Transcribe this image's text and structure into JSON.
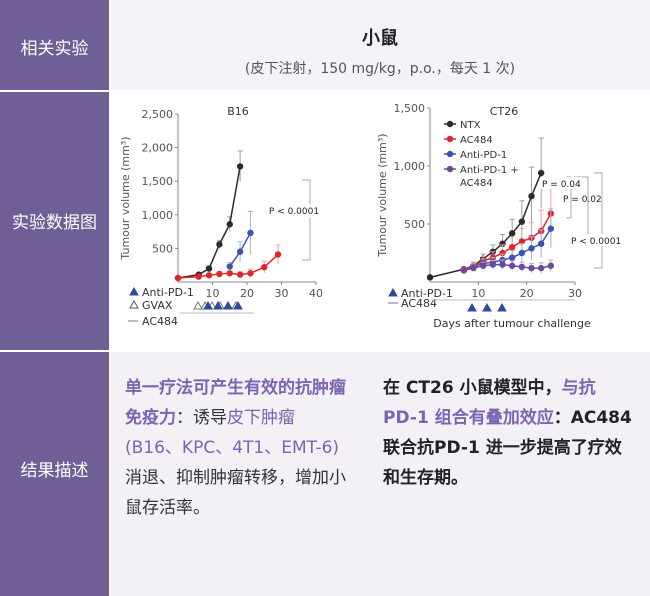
{
  "table": {
    "labels": {
      "experiment": "相关实验",
      "figure": "实验数据图",
      "result": "结果描述"
    },
    "header": {
      "title": "小鼠",
      "subtitle": "(皮下注射，150 mg/kg，p.o.，每天 1 次)"
    },
    "result_left": {
      "part1": "单一疗法可产生有效的抗肿瘤免疫力",
      "colon": "：",
      "part2": "诱导",
      "part3": "皮下肿瘤",
      "part4": " (B16、KPC、4T1、EMT-6) ",
      "part5": "消退、抑制肿瘤转移，增加小鼠存活率。"
    },
    "result_right": {
      "part1": "在 CT26 小鼠模型中，",
      "part2": "与抗 PD-1 组合有叠加效应",
      "part3": "：AC484 联合抗PD-1 进一步提高了疗效和生存期。"
    }
  },
  "colors": {
    "purple": "#6f5f96",
    "black_series": "#2b2b2b",
    "red_series": "#e0262d",
    "blue_series": "#3a55b0",
    "purple_series": "#6b4a9c",
    "triangle": "#2e4a9a"
  },
  "chart_data": [
    {
      "type": "line",
      "title": "B16",
      "ylabel": "Tumour volume (mm³)",
      "xlim": [
        0,
        40
      ],
      "ylim": [
        0,
        2500
      ],
      "xticks": [
        "10",
        "20",
        "30",
        "40"
      ],
      "yticks": [
        "500",
        "1,000",
        "1,500",
        "2,000",
        "2,500"
      ],
      "series": [
        {
          "color": "#2b2b2b",
          "x": [
            0,
            6,
            9,
            12,
            15,
            18
          ],
          "y": [
            60,
            110,
            200,
            560,
            860,
            1720
          ],
          "err": [
            0,
            20,
            40,
            60,
            110,
            230
          ]
        },
        {
          "color": "#e0262d",
          "x": [
            0,
            6,
            9,
            12,
            15,
            18,
            21,
            25,
            29
          ],
          "y": [
            60,
            80,
            100,
            120,
            130,
            110,
            130,
            220,
            410
          ],
          "err": [
            0,
            10,
            15,
            20,
            30,
            40,
            60,
            90,
            140
          ]
        },
        {
          "color": "#3a55b0",
          "x": [
            15,
            18,
            21
          ],
          "y": [
            230,
            450,
            730
          ],
          "err": [
            60,
            150,
            320
          ]
        }
      ],
      "annotations": [
        {
          "text": "P < 0.0001"
        }
      ],
      "treatment_labels": [
        "Anti-PD-1",
        "GVAX",
        "AC484"
      ]
    },
    {
      "type": "line",
      "title": "CT26",
      "ylabel": "Tumour volume (mm³)",
      "xlabel": "Days after tumour challenge",
      "xlim": [
        0,
        30
      ],
      "ylim": [
        0,
        1500
      ],
      "xticks": [
        "10",
        "20",
        "30"
      ],
      "yticks": [
        "500",
        "1,000",
        "1,500"
      ],
      "legend": {
        "position": "top-right",
        "entries": [
          "NTX",
          "AC484",
          "Anti-PD-1",
          "Anti-PD-1 + AC484"
        ]
      },
      "series": [
        {
          "name": "NTX",
          "color": "#2b2b2b",
          "x": [
            0,
            7,
            9,
            11,
            13,
            15,
            17,
            19,
            21,
            23
          ],
          "y": [
            40,
            110,
            140,
            200,
            260,
            330,
            420,
            520,
            740,
            940
          ],
          "err": [
            0,
            20,
            30,
            40,
            60,
            80,
            120,
            180,
            250,
            300
          ]
        },
        {
          "name": "AC484",
          "color": "#e0262d",
          "x": [
            7,
            9,
            11,
            13,
            15,
            17,
            19,
            21,
            23,
            25
          ],
          "y": [
            110,
            140,
            180,
            210,
            250,
            300,
            350,
            380,
            440,
            590
          ],
          "err": [
            20,
            30,
            40,
            50,
            70,
            90,
            110,
            130,
            180,
            230
          ]
        },
        {
          "name": "Anti-PD-1",
          "color": "#3a55b0",
          "x": [
            7,
            9,
            11,
            13,
            15,
            17,
            19,
            21,
            23,
            25
          ],
          "y": [
            100,
            130,
            160,
            170,
            190,
            210,
            250,
            290,
            330,
            460
          ],
          "err": [
            20,
            30,
            40,
            40,
            50,
            60,
            80,
            100,
            120,
            170
          ]
        },
        {
          "name": "Anti-PD-1 + AC484",
          "color": "#6b4a9c",
          "x": [
            7,
            9,
            11,
            13,
            15,
            17,
            19,
            21,
            23,
            25
          ],
          "y": [
            100,
            120,
            140,
            150,
            150,
            140,
            130,
            120,
            120,
            140
          ],
          "err": [
            20,
            25,
            30,
            35,
            40,
            40,
            40,
            40,
            45,
            50
          ]
        }
      ],
      "annotations": [
        {
          "text": "P = 0.04"
        },
        {
          "text": "P = 0.02"
        },
        {
          "text": "P < 0.0001"
        }
      ],
      "treatment_labels": [
        "Anti-PD-1",
        "AC484"
      ]
    }
  ]
}
